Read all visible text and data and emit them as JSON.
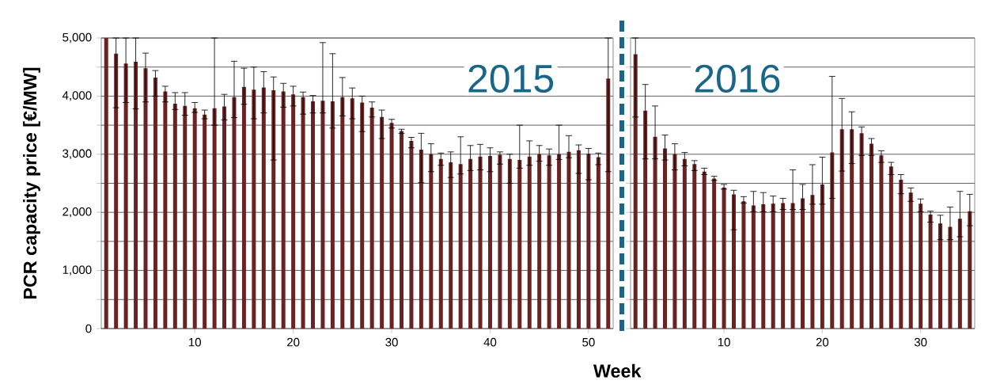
{
  "chart_data": [
    {
      "type": "bar",
      "title": "2015",
      "xlabel": "Week",
      "ylabel": "PCR capacity price [€/MW]",
      "color": "#6a2222",
      "grid": "y",
      "x": [
        1,
        2,
        3,
        4,
        5,
        6,
        7,
        8,
        9,
        10,
        11,
        12,
        13,
        14,
        15,
        16,
        17,
        18,
        19,
        20,
        21,
        22,
        23,
        24,
        25,
        26,
        27,
        28,
        29,
        30,
        31,
        32,
        33,
        34,
        35,
        36,
        37,
        38,
        39,
        40,
        41,
        42,
        43,
        44,
        45,
        46,
        47,
        48,
        49,
        50,
        51,
        52
      ],
      "values": [
        5000,
        4730,
        4560,
        4590,
        4480,
        4320,
        4080,
        3870,
        3830,
        3790,
        3680,
        3790,
        3820,
        3980,
        4160,
        4110,
        4150,
        4100,
        4080,
        4030,
        3980,
        3910,
        3920,
        3910,
        3980,
        3960,
        3890,
        3800,
        3640,
        3540,
        3400,
        3230,
        3080,
        3000,
        2920,
        2860,
        2830,
        2920,
        2960,
        2970,
        2990,
        2920,
        2900,
        2960,
        3000,
        2980,
        3000,
        3040,
        3070,
        3010,
        2950,
        4300
      ],
      "errors": [
        null,
        [
          3800,
          5000
        ],
        [
          3890,
          5000
        ],
        [
          3780,
          5000
        ],
        [
          3900,
          4740
        ],
        [
          4000,
          4440
        ],
        [
          3900,
          4170
        ],
        [
          3770,
          4060
        ],
        [
          3670,
          4060
        ],
        [
          3720,
          3890
        ],
        [
          3610,
          3760
        ],
        [
          3500,
          5000
        ],
        [
          3590,
          4030
        ],
        [
          3630,
          4600
        ],
        [
          3860,
          4480
        ],
        [
          3610,
          4500
        ],
        [
          3710,
          4420
        ],
        [
          2900,
          4330
        ],
        [
          3810,
          4220
        ],
        [
          3830,
          4170
        ],
        [
          3690,
          4070
        ],
        [
          3710,
          4010
        ],
        [
          3710,
          4920
        ],
        [
          3450,
          4730
        ],
        [
          3660,
          4320
        ],
        [
          3610,
          4140
        ],
        [
          3390,
          4000
        ],
        [
          3640,
          3900
        ],
        [
          3270,
          3760
        ],
        [
          3450,
          3600
        ],
        [
          3360,
          3430
        ],
        [
          3110,
          3290
        ],
        [
          2510,
          3360
        ],
        [
          2700,
          3180
        ],
        [
          2810,
          3020
        ],
        [
          2600,
          3040
        ],
        [
          2660,
          3300
        ],
        [
          2720,
          3150
        ],
        [
          2730,
          3170
        ],
        [
          2700,
          3110
        ],
        [
          2830,
          3040
        ],
        [
          2500,
          3000
        ],
        [
          2760,
          3500
        ],
        [
          2810,
          3230
        ],
        [
          2880,
          3150
        ],
        [
          2810,
          3090
        ],
        [
          2910,
          3500
        ],
        [
          2940,
          3320
        ],
        [
          2670,
          3160
        ],
        [
          2560,
          3100
        ],
        [
          2820,
          3020
        ],
        [
          2700,
          5000
        ]
      ],
      "xlim": [
        0.5,
        52.5
      ],
      "xticks": [
        10,
        20,
        30,
        40,
        50
      ],
      "ylim": [
        0,
        5000
      ],
      "yticks": [
        0,
        {
          "value": 500,
          "label": null
        },
        {
          "value": 1000,
          "label": "1,000"
        },
        {
          "value": 1500,
          "label": null
        },
        {
          "value": 2000,
          "label": "2,000"
        },
        {
          "value": 2500,
          "label": null
        },
        {
          "value": 3000,
          "label": "3,000"
        },
        {
          "value": 3500,
          "label": null
        },
        {
          "value": 4000,
          "label": "4,000"
        },
        {
          "value": 4500,
          "label": null
        },
        {
          "value": 5000,
          "label": "5,000"
        }
      ]
    },
    {
      "type": "bar",
      "title": "2016",
      "color": "#6a2222",
      "grid": "y",
      "tick_labels": "x",
      "x": [
        1,
        2,
        3,
        4,
        5,
        6,
        7,
        8,
        9,
        10,
        11,
        12,
        13,
        14,
        15,
        16,
        17,
        18,
        19,
        20,
        21,
        22,
        23,
        24,
        25,
        26,
        27,
        28,
        29,
        30,
        31,
        32,
        33,
        34,
        35
      ],
      "values": [
        4720,
        3750,
        3300,
        3100,
        3000,
        2920,
        2830,
        2700,
        2580,
        2430,
        2310,
        2190,
        2120,
        2140,
        2150,
        2160,
        2160,
        2240,
        2300,
        2480,
        3030,
        3430,
        3430,
        3360,
        3180,
        2980,
        2790,
        2560,
        2340,
        2150,
        1960,
        1810,
        1750,
        1890,
        2020
      ],
      "errors": [
        [
          3640,
          5000
        ],
        [
          2920,
          4200
        ],
        [
          2920,
          3830
        ],
        [
          2900,
          3330
        ],
        [
          2730,
          3180
        ],
        [
          2800,
          3030
        ],
        [
          2720,
          2890
        ],
        [
          2650,
          2760
        ],
        [
          2550,
          2620
        ],
        [
          2400,
          2480
        ],
        [
          1700,
          2380
        ],
        [
          2160,
          2270
        ],
        [
          2010,
          2360
        ],
        [
          2010,
          2340
        ],
        [
          2010,
          2280
        ],
        [
          2050,
          2240
        ],
        [
          2050,
          2730
        ],
        [
          2050,
          2480
        ],
        [
          2140,
          2820
        ],
        [
          2140,
          2950
        ],
        [
          2240,
          4340
        ],
        [
          2710,
          3960
        ],
        [
          2840,
          3730
        ],
        [
          2980,
          3470
        ],
        [
          2980,
          3270
        ],
        [
          2860,
          3060
        ],
        [
          2650,
          2860
        ],
        [
          2320,
          2650
        ],
        [
          2190,
          2420
        ],
        [
          2010,
          2230
        ],
        [
          1830,
          2020
        ],
        [
          1530,
          1950
        ],
        [
          1530,
          2090
        ],
        [
          1580,
          2360
        ],
        [
          1770,
          2310
        ]
      ],
      "xlim": [
        0.5,
        35.5
      ],
      "xticks": [
        10,
        20,
        30
      ],
      "ylim": [
        0,
        5000
      ],
      "yticks": [
        0,
        {
          "value": 500,
          "label": null
        },
        1000,
        {
          "value": 1500,
          "label": null
        },
        2000,
        {
          "value": 2500,
          "label": null
        },
        3000,
        {
          "value": 3500,
          "label": null
        },
        4000,
        {
          "value": 4500,
          "label": null
        },
        5000
      ]
    }
  ]
}
